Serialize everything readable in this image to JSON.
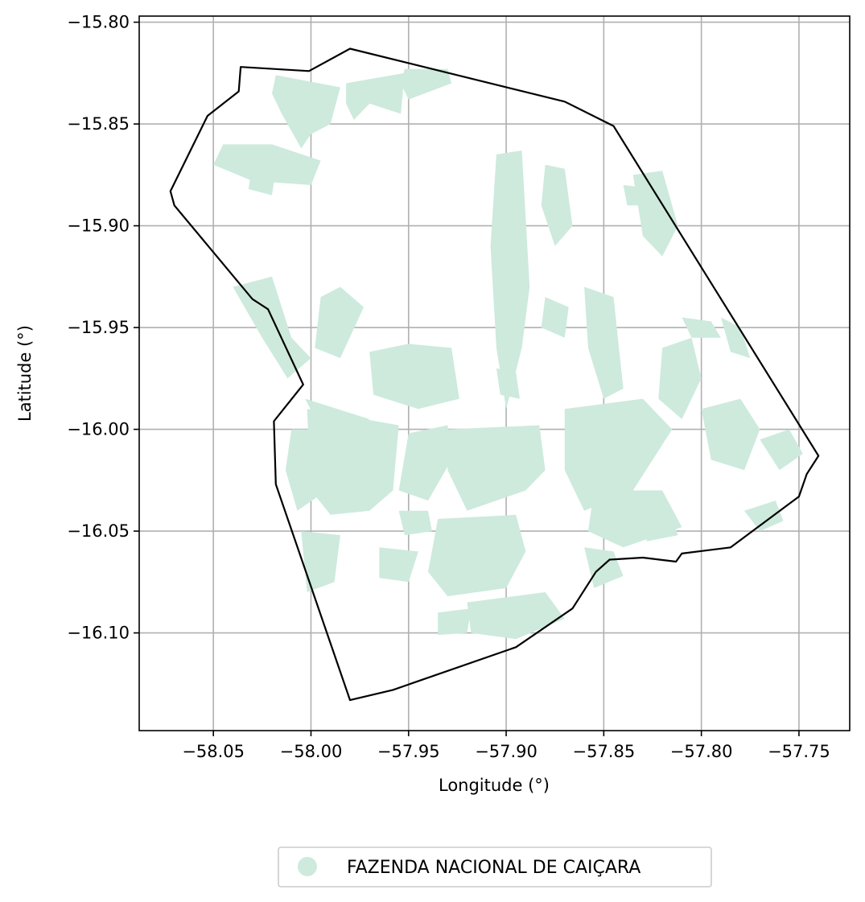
{
  "chart_data": {
    "type": "map",
    "xlabel": "Longitude (°)",
    "ylabel": "Latitude (°)",
    "xlim": [
      -58.088,
      -57.724
    ],
    "ylim": [
      -16.148,
      -15.797
    ],
    "x_ticks": [
      -58.05,
      -58.0,
      -57.95,
      -57.9,
      -57.85,
      -57.8,
      -57.75
    ],
    "y_ticks": [
      -15.8,
      -15.85,
      -15.9,
      -15.95,
      -16.0,
      -16.05,
      -16.1
    ],
    "x_tick_labels": [
      "−58.05",
      "−58.00",
      "−57.95",
      "−57.90",
      "−57.85",
      "−57.80",
      "−57.75"
    ],
    "y_tick_labels": [
      "−15.80",
      "−15.85",
      "−15.90",
      "−15.95",
      "−16.00",
      "−16.05",
      "−16.10"
    ],
    "grid": true,
    "legend_position": "bottom-center",
    "legend": [
      {
        "label": "FAZENDA NACIONAL DE CAIÇARA",
        "color": "#cdeadd"
      }
    ],
    "fill_color": "#cdeadd",
    "boundary_color": "#000000",
    "boundary": [
      [
        -57.98,
        -15.813
      ],
      [
        -57.87,
        -15.839
      ],
      [
        -57.845,
        -15.851
      ],
      [
        -57.74,
        -16.013
      ],
      [
        -57.746,
        -16.022
      ],
      [
        -57.75,
        -16.033
      ],
      [
        -57.785,
        -16.058
      ],
      [
        -57.81,
        -16.061
      ],
      [
        -57.813,
        -16.065
      ],
      [
        -57.83,
        -16.063
      ],
      [
        -57.847,
        -16.064
      ],
      [
        -57.854,
        -16.07
      ],
      [
        -57.866,
        -16.088
      ],
      [
        -57.895,
        -16.107
      ],
      [
        -57.958,
        -16.128
      ],
      [
        -57.98,
        -16.133
      ],
      [
        -58.018,
        -16.027
      ],
      [
        -58.019,
        -15.996
      ],
      [
        -58.004,
        -15.978
      ],
      [
        -58.022,
        -15.941
      ],
      [
        -58.03,
        -15.936
      ],
      [
        -58.07,
        -15.89
      ],
      [
        -58.072,
        -15.883
      ],
      [
        -58.053,
        -15.846
      ],
      [
        -58.037,
        -15.834
      ],
      [
        -58.036,
        -15.822
      ],
      [
        -58.001,
        -15.824
      ]
    ],
    "patches": [
      [
        [
          -57.952,
          -15.823
        ],
        [
          -57.93,
          -15.823
        ],
        [
          -57.928,
          -15.83
        ],
        [
          -57.95,
          -15.838
        ],
        [
          -57.954,
          -15.83
        ]
      ],
      [
        [
          -57.982,
          -15.83
        ],
        [
          -57.952,
          -15.825
        ],
        [
          -57.954,
          -15.845
        ],
        [
          -57.97,
          -15.84
        ],
        [
          -57.978,
          -15.848
        ],
        [
          -57.982,
          -15.84
        ]
      ],
      [
        [
          -58.018,
          -15.826
        ],
        [
          -57.985,
          -15.832
        ],
        [
          -57.99,
          -15.85
        ],
        [
          -58.0,
          -15.855
        ],
        [
          -58.005,
          -15.862
        ],
        [
          -58.015,
          -15.845
        ],
        [
          -58.02,
          -15.835
        ]
      ],
      [
        [
          -58.045,
          -15.86
        ],
        [
          -58.02,
          -15.86
        ],
        [
          -57.995,
          -15.868
        ],
        [
          -58.0,
          -15.88
        ],
        [
          -58.03,
          -15.878
        ],
        [
          -58.05,
          -15.87
        ]
      ],
      [
        [
          -58.04,
          -15.93
        ],
        [
          -58.02,
          -15.925
        ],
        [
          -58.01,
          -15.955
        ],
        [
          -58.0,
          -15.965
        ],
        [
          -58.012,
          -15.975
        ],
        [
          -58.025,
          -15.955
        ]
      ],
      [
        [
          -57.995,
          -15.935
        ],
        [
          -57.985,
          -15.93
        ],
        [
          -57.973,
          -15.94
        ],
        [
          -57.985,
          -15.965
        ],
        [
          -57.998,
          -15.96
        ]
      ],
      [
        [
          -57.97,
          -15.962
        ],
        [
          -57.968,
          -15.983
        ],
        [
          -57.945,
          -15.99
        ],
        [
          -57.924,
          -15.985
        ],
        [
          -57.928,
          -15.96
        ],
        [
          -57.95,
          -15.958
        ]
      ],
      [
        [
          -58.003,
          -15.985
        ],
        [
          -57.97,
          -15.995
        ],
        [
          -57.98,
          -16.005
        ],
        [
          -57.975,
          -16.015
        ],
        [
          -57.985,
          -16.02
        ],
        [
          -57.995,
          -16.0
        ]
      ],
      [
        [
          -58.002,
          -15.99
        ],
        [
          -57.955,
          -15.998
        ],
        [
          -57.958,
          -16.03
        ],
        [
          -57.97,
          -16.04
        ],
        [
          -57.99,
          -16.042
        ],
        [
          -58.0,
          -16.03
        ]
      ],
      [
        [
          -58.01,
          -16.0
        ],
        [
          -57.99,
          -16.0
        ],
        [
          -57.992,
          -16.03
        ],
        [
          -58.007,
          -16.04
        ],
        [
          -58.013,
          -16.02
        ]
      ],
      [
        [
          -57.95,
          -16.002
        ],
        [
          -57.93,
          -15.998
        ],
        [
          -57.928,
          -16.015
        ],
        [
          -57.94,
          -16.035
        ],
        [
          -57.955,
          -16.03
        ]
      ],
      [
        [
          -57.93,
          -16.0
        ],
        [
          -57.883,
          -15.998
        ],
        [
          -57.88,
          -16.02
        ],
        [
          -57.89,
          -16.03
        ],
        [
          -57.92,
          -16.04
        ],
        [
          -57.93,
          -16.02
        ]
      ],
      [
        [
          -57.905,
          -15.865
        ],
        [
          -57.892,
          -15.863
        ],
        [
          -57.888,
          -15.93
        ],
        [
          -57.892,
          -15.96
        ],
        [
          -57.9,
          -15.99
        ],
        [
          -57.905,
          -15.96
        ],
        [
          -57.908,
          -15.91
        ]
      ],
      [
        [
          -57.88,
          -15.87
        ],
        [
          -57.87,
          -15.872
        ],
        [
          -57.866,
          -15.9
        ],
        [
          -57.875,
          -15.91
        ],
        [
          -57.882,
          -15.89
        ]
      ],
      [
        [
          -57.835,
          -15.875
        ],
        [
          -57.82,
          -15.873
        ],
        [
          -57.812,
          -15.9
        ],
        [
          -57.82,
          -15.915
        ],
        [
          -57.83,
          -15.905
        ]
      ],
      [
        [
          -57.86,
          -15.93
        ],
        [
          -57.845,
          -15.935
        ],
        [
          -57.84,
          -15.98
        ],
        [
          -57.85,
          -15.985
        ],
        [
          -57.858,
          -15.96
        ]
      ],
      [
        [
          -57.87,
          -15.99
        ],
        [
          -57.83,
          -15.985
        ],
        [
          -57.815,
          -16.0
        ],
        [
          -57.835,
          -16.03
        ],
        [
          -57.86,
          -16.04
        ],
        [
          -57.87,
          -16.02
        ]
      ],
      [
        [
          -57.855,
          -16.03
        ],
        [
          -57.82,
          -16.03
        ],
        [
          -57.81,
          -16.048
        ],
        [
          -57.84,
          -16.058
        ],
        [
          -57.858,
          -16.05
        ]
      ],
      [
        [
          -57.82,
          -15.96
        ],
        [
          -57.805,
          -15.955
        ],
        [
          -57.8,
          -15.975
        ],
        [
          -57.81,
          -15.995
        ],
        [
          -57.822,
          -15.985
        ]
      ],
      [
        [
          -57.8,
          -15.99
        ],
        [
          -57.78,
          -15.985
        ],
        [
          -57.77,
          -16.0
        ],
        [
          -57.778,
          -16.02
        ],
        [
          -57.795,
          -16.015
        ]
      ],
      [
        [
          -57.79,
          -15.945
        ],
        [
          -57.78,
          -15.95
        ],
        [
          -57.775,
          -15.965
        ],
        [
          -57.785,
          -15.962
        ]
      ],
      [
        [
          -57.77,
          -16.005
        ],
        [
          -57.755,
          -16.0
        ],
        [
          -57.748,
          -16.012
        ],
        [
          -57.76,
          -16.02
        ]
      ],
      [
        [
          -57.778,
          -16.04
        ],
        [
          -57.762,
          -16.035
        ],
        [
          -57.758,
          -16.045
        ],
        [
          -57.77,
          -16.05
        ]
      ],
      [
        [
          -57.81,
          -15.945
        ],
        [
          -57.795,
          -15.947
        ],
        [
          -57.79,
          -15.955
        ],
        [
          -57.805,
          -15.955
        ]
      ],
      [
        [
          -57.84,
          -15.88
        ],
        [
          -57.822,
          -15.882
        ],
        [
          -57.818,
          -15.89
        ],
        [
          -57.838,
          -15.89
        ]
      ],
      [
        [
          -57.935,
          -16.044
        ],
        [
          -57.895,
          -16.042
        ],
        [
          -57.89,
          -16.06
        ],
        [
          -57.9,
          -16.078
        ],
        [
          -57.93,
          -16.082
        ],
        [
          -57.94,
          -16.07
        ]
      ],
      [
        [
          -57.955,
          -16.04
        ],
        [
          -57.94,
          -16.04
        ],
        [
          -57.938,
          -16.05
        ],
        [
          -57.952,
          -16.052
        ]
      ],
      [
        [
          -57.92,
          -16.085
        ],
        [
          -57.88,
          -16.08
        ],
        [
          -57.87,
          -16.093
        ],
        [
          -57.895,
          -16.103
        ],
        [
          -57.918,
          -16.1
        ]
      ],
      [
        [
          -57.86,
          -16.058
        ],
        [
          -57.845,
          -16.06
        ],
        [
          -57.84,
          -16.072
        ],
        [
          -57.855,
          -16.078
        ]
      ],
      [
        [
          -57.935,
          -16.09
        ],
        [
          -57.918,
          -16.088
        ],
        [
          -57.92,
          -16.1
        ],
        [
          -57.935,
          -16.101
        ]
      ],
      [
        [
          -58.005,
          -16.05
        ],
        [
          -57.985,
          -16.052
        ],
        [
          -57.988,
          -16.075
        ],
        [
          -58.002,
          -16.08
        ]
      ],
      [
        [
          -57.965,
          -16.058
        ],
        [
          -57.945,
          -16.06
        ],
        [
          -57.95,
          -16.075
        ],
        [
          -57.965,
          -16.073
        ]
      ],
      [
        [
          -58.03,
          -15.87
        ],
        [
          -58.018,
          -15.872
        ],
        [
          -58.02,
          -15.885
        ],
        [
          -58.032,
          -15.882
        ]
      ],
      [
        [
          -57.88,
          -15.935
        ],
        [
          -57.868,
          -15.94
        ],
        [
          -57.87,
          -15.955
        ],
        [
          -57.882,
          -15.95
        ]
      ],
      [
        [
          -57.83,
          -16.045
        ],
        [
          -57.815,
          -16.043
        ],
        [
          -57.812,
          -16.052
        ],
        [
          -57.828,
          -16.055
        ]
      ],
      [
        [
          -57.905,
          -15.97
        ],
        [
          -57.895,
          -15.972
        ],
        [
          -57.893,
          -15.985
        ],
        [
          -57.903,
          -15.983
        ]
      ]
    ]
  },
  "legend": {
    "label": "FAZENDA NACIONAL DE CAIÇARA",
    "marker_color": "#cdeadd"
  }
}
